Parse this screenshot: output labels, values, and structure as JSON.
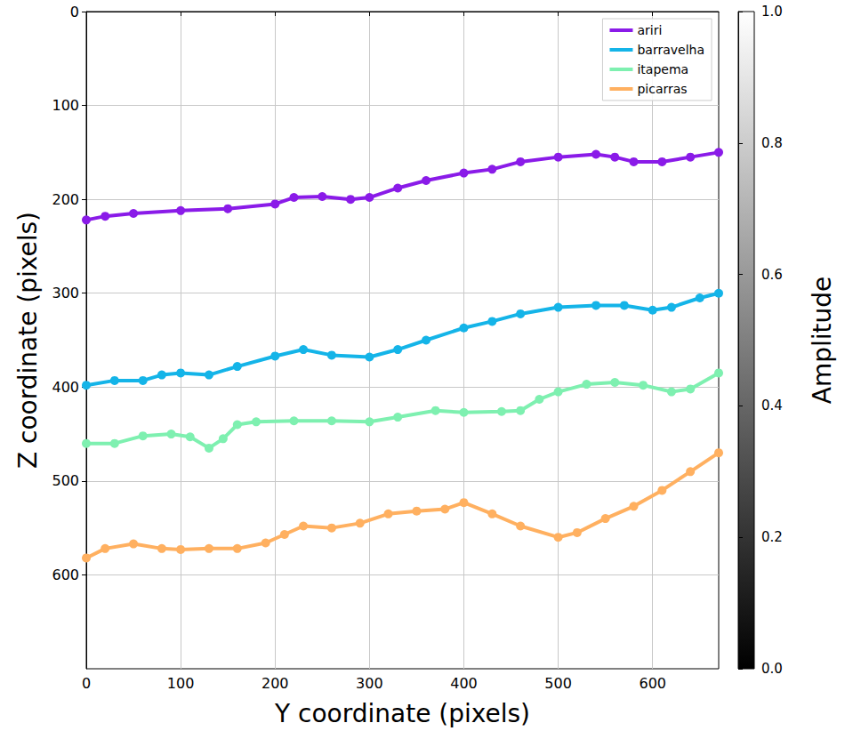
{
  "chart_data": {
    "type": "line",
    "xlabel": "Y coordinate (pixels)",
    "ylabel": "Z coordinate (pixels)",
    "xlim": [
      0,
      670
    ],
    "ylim": [
      700,
      0
    ],
    "xticks": [
      0,
      100,
      200,
      300,
      400,
      500,
      600
    ],
    "yticks": [
      0,
      100,
      200,
      300,
      400,
      500,
      600
    ],
    "grid": true,
    "legend": "upper right",
    "marker": "circle",
    "colorbar": {
      "label": "Amplitude",
      "range": [
        0,
        1
      ],
      "ticks": [
        {
          "value": 0,
          "label": "0.0"
        },
        {
          "value": 0.2,
          "label": "0.2"
        },
        {
          "value": 0.4,
          "label": "0.4"
        },
        {
          "value": 0.6,
          "label": "0.6"
        },
        {
          "value": 0.8,
          "label": "0.8"
        },
        {
          "value": 1,
          "label": "1.0"
        }
      ]
    },
    "series": [
      {
        "name": "ariri",
        "color": "#8a1be8",
        "x": [
          0,
          20,
          50,
          100,
          150,
          200,
          220,
          250,
          280,
          300,
          330,
          360,
          400,
          430,
          460,
          500,
          540,
          560,
          580,
          610,
          640,
          670
        ],
        "values": [
          222,
          218,
          215,
          212,
          210,
          205,
          198,
          197,
          200,
          198,
          188,
          180,
          172,
          168,
          160,
          155,
          152,
          155,
          160,
          160,
          155,
          150
        ]
      },
      {
        "name": "barravelha",
        "color": "#14b4e8",
        "x": [
          0,
          30,
          60,
          80,
          100,
          130,
          160,
          200,
          230,
          260,
          300,
          330,
          360,
          400,
          430,
          460,
          500,
          540,
          570,
          600,
          620,
          650,
          670
        ],
        "values": [
          398,
          393,
          393,
          387,
          385,
          387,
          378,
          367,
          360,
          366,
          368,
          360,
          350,
          337,
          330,
          322,
          315,
          313,
          313,
          318,
          315,
          305,
          300
        ]
      },
      {
        "name": "itapema",
        "color": "#7ef0b0",
        "x": [
          0,
          30,
          60,
          90,
          110,
          130,
          145,
          160,
          180,
          220,
          260,
          300,
          330,
          370,
          400,
          440,
          460,
          480,
          500,
          530,
          560,
          590,
          620,
          640,
          670
        ],
        "values": [
          460,
          460,
          452,
          450,
          453,
          465,
          455,
          440,
          437,
          436,
          436,
          437,
          432,
          425,
          427,
          426,
          425,
          413,
          405,
          397,
          395,
          398,
          405,
          402,
          385
        ]
      },
      {
        "name": "picarras",
        "color": "#ffb060",
        "x": [
          0,
          20,
          50,
          80,
          100,
          130,
          160,
          190,
          210,
          230,
          260,
          290,
          320,
          350,
          380,
          400,
          430,
          460,
          500,
          520,
          550,
          580,
          610,
          640,
          670
        ],
        "values": [
          582,
          572,
          567,
          572,
          573,
          572,
          572,
          566,
          557,
          548,
          550,
          545,
          535,
          532,
          530,
          523,
          535,
          548,
          560,
          555,
          540,
          527,
          510,
          490,
          470
        ]
      }
    ]
  }
}
